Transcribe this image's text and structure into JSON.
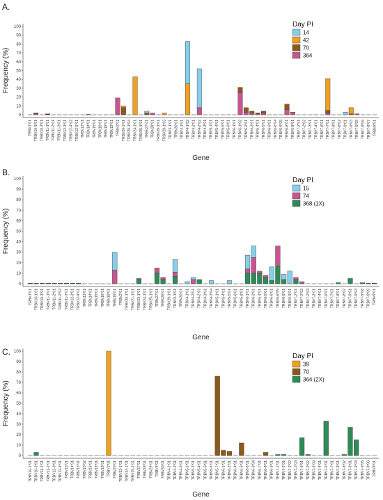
{
  "figure_caption": "",
  "chart_data": [
    {
      "panel_label": "A.",
      "type": "bar",
      "stacked": true,
      "ylabel": "Frequency (%)",
      "xlabel": "Gene",
      "ylim": [
        0,
        100
      ],
      "yticks": [
        0,
        10,
        20,
        30,
        40,
        50,
        60,
        70,
        80,
        90,
        100
      ],
      "legend_title": "Day PI",
      "legend_position": "top-right",
      "categories": [
        "TRBV1*01",
        "TRBV10-1*01",
        "TRBV10-3*01",
        "TRBV11-1*01",
        "TRBV11-2*01",
        "TRBV11-3*01",
        "TRBV12-3*01",
        "TRBV12-4*02",
        "TRBV12-5*01",
        "TRBV13*01",
        "TRBV14*01",
        "TRBV15*01",
        "TRBV16*01",
        "TRBV18*01",
        "TRBV19*01",
        "TRBV2*01",
        "TRBV20-1*01",
        "TRBV20-1*04",
        "TRBV24-1*01",
        "TRBV25-1*01",
        "TRBV27*01",
        "TRBV28*01",
        "TRBV29-1*01",
        "TRBV29-1*03",
        "TRBV3-1*01",
        "TRBV30*01",
        "TRBV4-1*01",
        "TRBV4-1*02",
        "TRBV4-2*01",
        "TRBV4-2*02",
        "TRBV4-3*01",
        "TRBV5-1*01",
        "TRBV5-4*01",
        "TRBV5-5*01",
        "TRBV5-6*01",
        "TRBV6-1*01",
        "TRBV6-1*02",
        "TRBV6-2*01",
        "TRBV6-3*01",
        "TRBV6-4*01",
        "TRBV6-5*01",
        "TRBV6-6*01",
        "TRBV6-6*04",
        "TRBV6-6*05",
        "TRBV6-8*01",
        "TRBV6-9*01",
        "TRBV7-2*01",
        "TRBV7-2*02",
        "TRBV7-3*01",
        "TRBV7-4*01",
        "TRBV7-6*01",
        "TRBV7-7*01",
        "TRBV7-8*01",
        "TRBV7-8*02",
        "TRBV7-9*01",
        "TRBV7-9*03",
        "TRBV7-9*05",
        "TRBV7-9*06",
        "TRBV7-9*07",
        "TRBV9*01"
      ],
      "series": [
        {
          "name": "14",
          "color": "#87CEEB",
          "values": [
            0,
            0,
            0,
            0,
            0,
            0,
            0,
            0,
            0,
            0,
            0.5,
            0,
            0,
            0,
            0,
            0,
            0,
            0,
            0,
            0,
            2,
            0,
            0,
            0,
            0,
            0,
            0,
            48,
            0,
            44,
            0,
            0,
            0,
            0,
            0,
            0,
            0,
            0,
            0,
            0,
            0,
            0,
            0,
            0,
            0,
            0,
            0,
            0,
            0,
            0,
            0,
            0,
            0,
            0,
            3,
            0,
            0,
            0,
            0,
            0
          ]
        },
        {
          "name": "42",
          "color": "#F0A020",
          "values": [
            0,
            0,
            0,
            0,
            0,
            0,
            0,
            0,
            0,
            0,
            0,
            0,
            0,
            0,
            0,
            0,
            2,
            0,
            43,
            0,
            0,
            0,
            0,
            2,
            0,
            0,
            0,
            35,
            0,
            0,
            0,
            0,
            0,
            0,
            0,
            0,
            0,
            0,
            0,
            0,
            0,
            0,
            0,
            0,
            0,
            0,
            0,
            0,
            0,
            0,
            0,
            36,
            0,
            0,
            0,
            7,
            0,
            0,
            0,
            0
          ]
        },
        {
          "name": "70",
          "color": "#8B5A1A",
          "values": [
            0,
            1,
            0,
            0.5,
            0,
            0,
            0,
            0,
            0,
            0,
            0,
            0,
            0,
            0,
            0,
            0,
            8,
            0,
            0,
            0,
            2,
            0,
            0,
            0,
            0,
            0,
            0,
            0,
            0,
            0,
            0,
            0,
            0,
            0,
            0,
            0,
            6,
            5,
            2,
            1,
            2,
            0,
            0,
            0,
            6,
            0,
            0,
            0,
            0,
            0,
            0,
            3,
            0,
            0,
            0,
            1,
            0,
            0,
            0,
            0
          ]
        },
        {
          "name": "364",
          "color": "#C9558F",
          "values": [
            0,
            1,
            0,
            0.5,
            0,
            0,
            0,
            0,
            0,
            0,
            0,
            0,
            0,
            0,
            0,
            19,
            0,
            0,
            0,
            0,
            0,
            2,
            0,
            0,
            0,
            0,
            0,
            0,
            0,
            8,
            0,
            0,
            0,
            0,
            0,
            0,
            25,
            3,
            2,
            1,
            2,
            0,
            0,
            0,
            6,
            3,
            0,
            0,
            0,
            0,
            0,
            2,
            0,
            0,
            0,
            0,
            1,
            0,
            0,
            0
          ]
        }
      ]
    },
    {
      "panel_label": "B.",
      "type": "bar",
      "stacked": true,
      "ylabel": "Frequency (%)",
      "xlabel": "Gene",
      "ylim": [
        0,
        100
      ],
      "yticks": [
        0,
        10,
        20,
        30,
        40,
        50,
        60,
        70,
        80,
        90,
        100
      ],
      "legend_title": "Day PI",
      "legend_position": "top-right",
      "categories": [
        "TRBV1*01",
        "TRBV10-1*01",
        "TRBV10-3*01",
        "TRBV11-1*01",
        "TRBV11-2*01",
        "TRBV11-2*02",
        "TRBV11-3*01",
        "TRBV12-3*01",
        "TRBV12-4*01",
        "TRBV13*01",
        "TRBV14*01",
        "TRBV15*01",
        "TRBV16*01",
        "TRBV18*01",
        "TRBV19*01",
        "TRBV2*01",
        "TRBV20-1*01",
        "TRBV21-1*01",
        "TRBV23-1*01",
        "TRBV24-1*01",
        "TRBV25-1*01",
        "TRBV27*01",
        "TRBV28*01",
        "TRBV29-1*01",
        "TRBV3-1*01",
        "TRBV30*01",
        "TRBV4-1*01",
        "TRBV4-2*01",
        "TRBV4-2*02",
        "TRBV4-3*01",
        "TRBV4-3*04",
        "TRBV5-1*01",
        "TRBV5-4*01",
        "TRBV5-5*01",
        "TRBV5-6*01",
        "TRBV5-8*01",
        "TRBV6-1*01",
        "TRBV6-2*01",
        "TRBV6-4*01",
        "TRBV6-5*01",
        "TRBV6-6*01",
        "TRBV6-6*05",
        "TRBV6-8*01",
        "TRBV6-9*01",
        "TRBV7-2*01",
        "TRBV7-2*02",
        "TRBV7-2*03",
        "TRBV7-3*01",
        "TRBV7-4*01",
        "TRBV7-6*01",
        "TRBV7-7*01",
        "TRBV7-8*01",
        "TRBV7-8*02",
        "TRBV7-9*01",
        "TRBV7-9*03",
        "TRBV7-9*08",
        "TRBV7-9*09",
        "TRBV9*01"
      ],
      "series": [
        {
          "name": "15",
          "color": "#87CEEB",
          "values": [
            0,
            0,
            0,
            0,
            0,
            0,
            0,
            0,
            0,
            0,
            0,
            0,
            0,
            0,
            17,
            0,
            0,
            0,
            0,
            0,
            0,
            0,
            0,
            0,
            12,
            0,
            2,
            2,
            0,
            0,
            3,
            0,
            0,
            3,
            0,
            0,
            13,
            11,
            0,
            0,
            13,
            0,
            5,
            12,
            0,
            1,
            0,
            0,
            0,
            0,
            0,
            0,
            0,
            0,
            0,
            0,
            0,
            0
          ]
        },
        {
          "name": "74",
          "color": "#C9558F",
          "values": [
            0,
            0,
            0,
            0,
            0,
            0,
            0,
            0,
            0,
            0,
            0,
            0,
            0,
            0,
            13,
            0,
            0,
            0,
            1,
            0,
            0,
            5,
            2,
            0,
            4,
            0,
            0,
            4,
            0,
            0,
            0,
            0,
            0,
            0,
            0,
            0,
            4,
            15,
            2,
            2,
            0,
            19,
            0,
            0,
            2,
            1,
            0,
            0,
            0,
            0,
            0,
            0,
            0,
            0,
            0,
            0,
            0,
            0
          ]
        },
        {
          "name": "368 (1X)",
          "color": "#2E8B57",
          "values": [
            0.5,
            0.5,
            0.5,
            0.5,
            0.5,
            0.5,
            0.5,
            0.5,
            0.5,
            0,
            0,
            0,
            0,
            0,
            0,
            0,
            0,
            0,
            4,
            0,
            0,
            10,
            4,
            0,
            7,
            0,
            0,
            0,
            4,
            0,
            0,
            0,
            0,
            0,
            0,
            0,
            10,
            10,
            10,
            6,
            3,
            17,
            4,
            0,
            4,
            0,
            0,
            0,
            0,
            0,
            0,
            1,
            0,
            5,
            0,
            1,
            0.5,
            0.5
          ]
        }
      ]
    },
    {
      "panel_label": "C.",
      "type": "bar",
      "stacked": true,
      "ylabel": "Frequency (%)",
      "xlabel": "Gene",
      "ylim": [
        0,
        100
      ],
      "yticks": [
        0,
        10,
        20,
        30,
        40,
        50,
        60,
        70,
        80,
        90,
        100
      ],
      "legend_title": "Day PI",
      "legend_position": "top-right",
      "categories": [
        "TRBV10-1*01",
        "TRBV10-3*01",
        "TRBV11-1*01",
        "TRBV11-2*01",
        "TRBV12-3*01",
        "TRBV12-4*01",
        "TRBV13*01",
        "TRBV14*01",
        "TRBV15*01",
        "TRBV15*02",
        "TRBV16*01",
        "TRBV18*01",
        "TRBV19*01",
        "TRBV2*01",
        "TRBV20*01",
        "TRBV23-1*01",
        "TRBV24-1*01",
        "TRBV25-1*01",
        "TRBV27*01",
        "TRBV28*01",
        "TRBV29*01",
        "TRBV3*01",
        "TRBV30*01",
        "TRBV4-1*01",
        "TRBV4-2*01",
        "TRBV4-3*01",
        "TRBV5-1*01",
        "TRBV5-3*01",
        "TRBV5-4*01",
        "TRBV5-5*01",
        "TRBV5-6*01",
        "TRBV5-7*01",
        "TRBV6-1*01",
        "TRBV6-2*01",
        "TRBV6-4*01",
        "TRBV6-5*01",
        "TRBV6-6*01",
        "TRBV6-6*04",
        "TRBV6-7*01",
        "TRBV6-8*01",
        "TRBV6-9*01",
        "TRBV7-1*01",
        "TRBV7-2*01",
        "TRBV7-2*02",
        "TRBV7-2*03",
        "TRBV7-3*01",
        "TRBV7-3*02",
        "TRBV7-3*04",
        "TRBV7-4*01",
        "TRBV7-6*01",
        "TRBV7-7*01",
        "TRBV7-8*01",
        "TRBV7-8*02",
        "TRBV7-9*01",
        "TRBV7-9*03",
        "TRBV7-9*05",
        "TRBV7-9*06",
        "TRBV9*01"
      ],
      "series": [
        {
          "name": "39",
          "color": "#F0A020",
          "values": [
            0,
            0,
            0,
            0,
            0,
            0,
            0,
            0,
            0,
            0,
            0,
            0,
            0,
            100,
            0,
            0,
            0,
            0,
            0,
            0,
            0,
            0,
            0,
            0,
            0,
            0,
            0,
            0,
            0,
            0,
            0,
            0,
            0,
            0,
            0,
            0,
            0,
            0,
            0,
            0,
            0,
            0,
            0,
            0,
            0,
            0,
            0,
            0,
            0,
            0,
            0,
            0,
            0,
            0,
            0,
            0,
            0,
            0
          ]
        },
        {
          "name": "70",
          "color": "#8B5A1A",
          "values": [
            0,
            0,
            0,
            0,
            0,
            0,
            0,
            0,
            0,
            0,
            0,
            0,
            0,
            0,
            0,
            0,
            0,
            0,
            0,
            0,
            0,
            0,
            0,
            0,
            0,
            0,
            0,
            0,
            0,
            0,
            0,
            76,
            5,
            4,
            0,
            12,
            0,
            0,
            0,
            3,
            0,
            0,
            0,
            0,
            0,
            0,
            0,
            0,
            0,
            0,
            0,
            0,
            0,
            0,
            0,
            0,
            0,
            0
          ]
        },
        {
          "name": "364 (2X)",
          "color": "#2E8B57",
          "values": [
            0,
            3,
            0,
            0,
            0,
            0,
            0,
            0,
            0,
            0,
            0,
            0,
            0,
            0,
            0,
            0,
            0,
            0,
            0,
            0,
            0,
            0,
            0,
            0,
            0,
            0,
            0,
            0,
            0,
            0,
            0,
            0,
            0,
            0,
            0,
            0,
            0,
            0,
            0,
            0,
            0,
            1,
            1,
            0,
            0,
            17,
            1,
            0,
            0,
            33,
            0,
            0,
            1,
            27,
            15,
            0,
            0,
            0
          ]
        }
      ]
    }
  ]
}
